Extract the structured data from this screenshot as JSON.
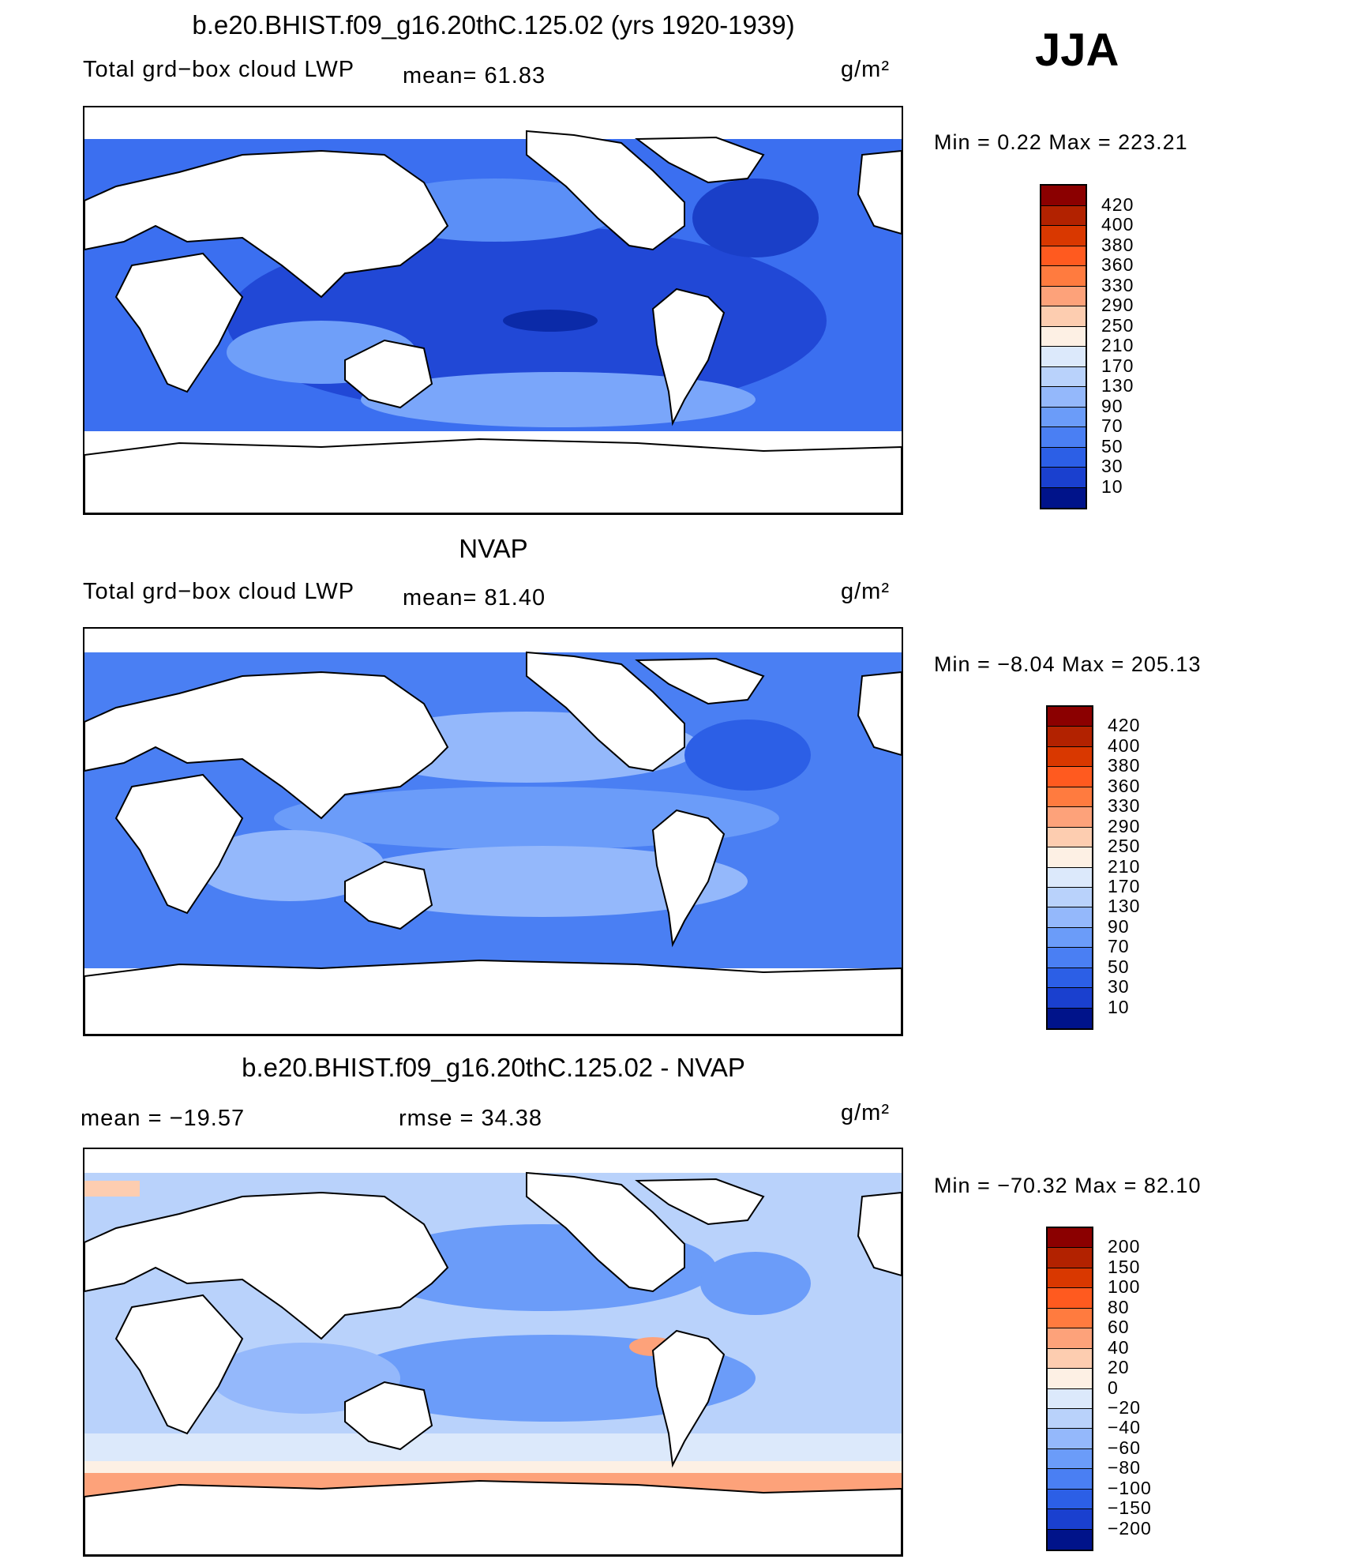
{
  "season_label": "JJA",
  "unit_label": "g/m²",
  "panels": [
    {
      "title": "b.e20.BHIST.f09_g16.20thC.125.02 (yrs 1920-1939)",
      "variable": "Total grd−box cloud LWP",
      "stat1": "mean=  61.83",
      "stat2": "",
      "minmax": "Min =   0.22 Max = 223.21"
    },
    {
      "title": "NVAP",
      "variable": "Total grd−box cloud LWP",
      "stat1": "mean=  81.40",
      "stat2": "",
      "minmax": "Min =  −8.04 Max = 205.13"
    },
    {
      "title": "b.e20.BHIST.f09_g16.20thC.125.02 - NVAP",
      "variable": "",
      "stat1": "mean = −19.57",
      "stat2": "rmse =  34.38",
      "minmax": "Min = −70.32 Max =  82.10"
    }
  ],
  "colorbars": {
    "field": {
      "labels": [
        "420",
        "400",
        "380",
        "360",
        "330",
        "290",
        "250",
        "210",
        "170",
        "130",
        "90",
        "70",
        "50",
        "30",
        "10"
      ],
      "colors": [
        "#8b0000",
        "#b22200",
        "#d93800",
        "#ff5a1f",
        "#ff7b3f",
        "#fda27a",
        "#fdcdb0",
        "#fdf0e4",
        "#dce9fb",
        "#b9d2fb",
        "#94b8fb",
        "#6b9cf9",
        "#4a7ff3",
        "#2c5fe6",
        "#1a40cf",
        "#00138a"
      ]
    },
    "diff": {
      "labels": [
        "200",
        "150",
        "100",
        "80",
        "60",
        "40",
        "20",
        "0",
        "−20",
        "−40",
        "−60",
        "−80",
        "−100",
        "−150",
        "−200"
      ],
      "colors": [
        "#8b0000",
        "#b22200",
        "#d93800",
        "#ff5a1f",
        "#ff7b3f",
        "#fda27a",
        "#fdcdb0",
        "#fdf0e4",
        "#dce9fb",
        "#b9d2fb",
        "#94b8fb",
        "#6b9cf9",
        "#4a7ff3",
        "#2c5fe6",
        "#1a40cf",
        "#00138a"
      ]
    }
  }
}
